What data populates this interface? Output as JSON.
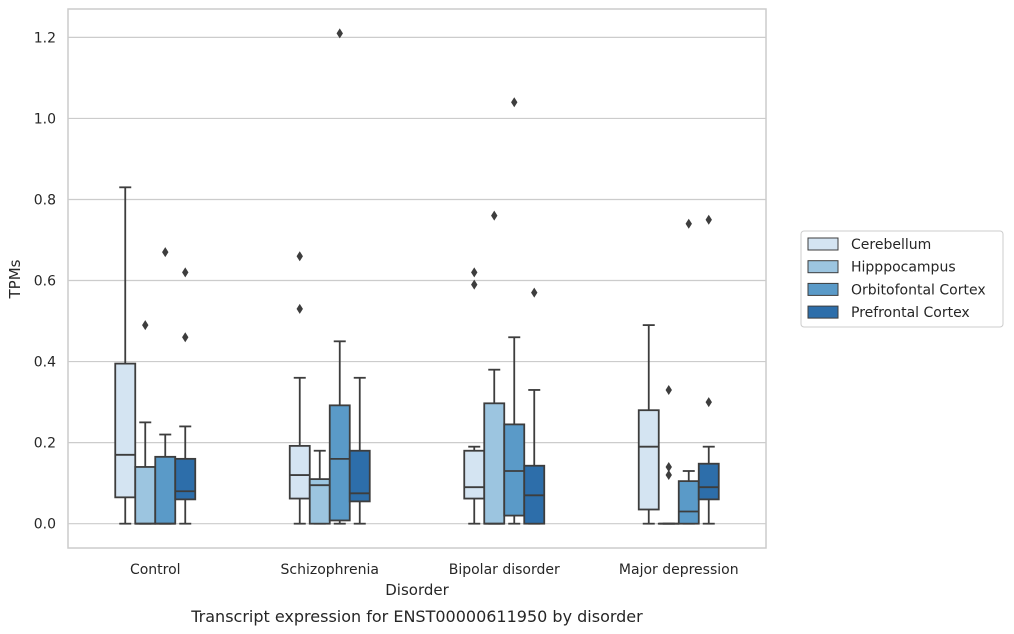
{
  "caption": "Transcript expression for ENST00000611950 by disorder",
  "chart_data": {
    "type": "box",
    "title": "",
    "xlabel": "Disorder",
    "ylabel": "TPMs",
    "ylim": [
      -0.06,
      1.27
    ],
    "yticks": [
      0.0,
      0.2,
      0.4,
      0.6,
      0.8,
      1.0,
      1.2
    ],
    "ytick_labels": [
      "0.0",
      "0.2",
      "0.4",
      "0.6",
      "0.8",
      "1.0",
      "1.2"
    ],
    "grid": true,
    "legend_position": "right",
    "categories": [
      "Control",
      "Schizophrenia",
      "Bipolar disorder",
      "Major depression"
    ],
    "series": [
      {
        "name": "Cerebellum",
        "color": "#d4e4f2",
        "boxes": [
          {
            "whislo": 0.0,
            "q1": 0.065,
            "med": 0.17,
            "q3": 0.395,
            "whishi": 0.83,
            "fliers": []
          },
          {
            "whislo": 0.0,
            "q1": 0.062,
            "med": 0.12,
            "q3": 0.192,
            "whishi": 0.36,
            "fliers": [
              0.53,
              0.66
            ]
          },
          {
            "whislo": 0.0,
            "q1": 0.062,
            "med": 0.09,
            "q3": 0.18,
            "whishi": 0.19,
            "fliers": [
              0.59,
              0.62
            ]
          },
          {
            "whislo": 0.0,
            "q1": 0.035,
            "med": 0.19,
            "q3": 0.28,
            "whishi": 0.49,
            "fliers": []
          }
        ]
      },
      {
        "name": "Hipppocampus",
        "color": "#9cc5e0",
        "boxes": [
          {
            "whislo": 0.0,
            "q1": 0.0,
            "med": 0.0,
            "q3": 0.14,
            "whishi": 0.25,
            "fliers": [
              0.49
            ]
          },
          {
            "whislo": 0.0,
            "q1": 0.0,
            "med": 0.095,
            "q3": 0.11,
            "whishi": 0.18,
            "fliers": []
          },
          {
            "whislo": 0.0,
            "q1": 0.0,
            "med": 0.0,
            "q3": 0.297,
            "whishi": 0.38,
            "fliers": [
              0.76
            ]
          },
          {
            "whislo": 0.0,
            "q1": 0.0,
            "med": 0.0,
            "q3": 0.0,
            "whishi": 0.0,
            "fliers": [
              0.12,
              0.14,
              0.33
            ]
          }
        ]
      },
      {
        "name": "Orbitofontal Cortex",
        "color": "#5a9ac8",
        "boxes": [
          {
            "whislo": 0.0,
            "q1": 0.0,
            "med": 0.0,
            "q3": 0.165,
            "whishi": 0.22,
            "fliers": [
              0.67
            ]
          },
          {
            "whislo": 0.0,
            "q1": 0.008,
            "med": 0.16,
            "q3": 0.292,
            "whishi": 0.45,
            "fliers": [
              1.21
            ]
          },
          {
            "whislo": 0.0,
            "q1": 0.02,
            "med": 0.13,
            "q3": 0.245,
            "whishi": 0.46,
            "fliers": [
              1.04
            ]
          },
          {
            "whislo": 0.0,
            "q1": 0.0,
            "med": 0.03,
            "q3": 0.105,
            "whishi": 0.13,
            "fliers": [
              0.74
            ]
          }
        ]
      },
      {
        "name": "Prefrontal Cortex",
        "color": "#2d6eaa",
        "boxes": [
          {
            "whislo": 0.0,
            "q1": 0.06,
            "med": 0.08,
            "q3": 0.16,
            "whishi": 0.24,
            "fliers": [
              0.46,
              0.62
            ]
          },
          {
            "whislo": 0.0,
            "q1": 0.055,
            "med": 0.075,
            "q3": 0.18,
            "whishi": 0.36,
            "fliers": []
          },
          {
            "whislo": 0.0,
            "q1": 0.0,
            "med": 0.07,
            "q3": 0.143,
            "whishi": 0.33,
            "fliers": [
              0.57
            ]
          },
          {
            "whislo": 0.0,
            "q1": 0.06,
            "med": 0.09,
            "q3": 0.148,
            "whishi": 0.19,
            "fliers": [
              0.3,
              0.75
            ]
          }
        ]
      }
    ]
  }
}
